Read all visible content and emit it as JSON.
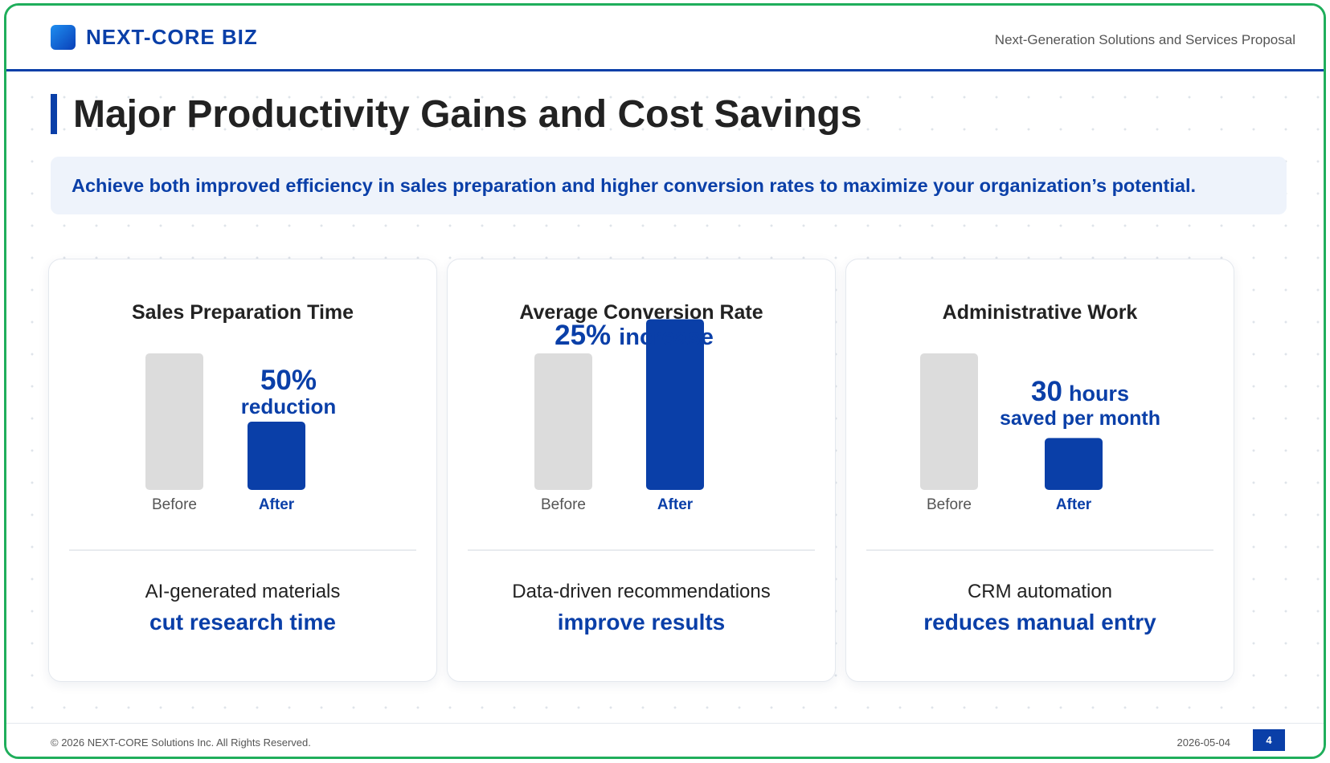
{
  "header": {
    "logo_text": "NEXT-CORE BIZ",
    "right_text": "Next-Generation Solutions and Services Proposal"
  },
  "title": "Major Productivity Gains and Cost Savings",
  "subtitle": "Achieve both improved efficiency in sales preparation and higher conversion rates to maximize your organization’s potential.",
  "colors": {
    "accent": "#0a3fa8",
    "before_bar": "#dcdcdc",
    "after_bar": "#0a3fa8",
    "frame": "#1fae5b"
  },
  "cards": [
    {
      "title": "Sales Preparation Time",
      "annotation": {
        "value": "50%",
        "unit": "",
        "line2": "reduction"
      },
      "description": "AI-generated materials",
      "highlight": "cut research time"
    },
    {
      "title": "Average Conversion Rate",
      "annotation": {
        "value": "25%",
        "unit": "increase",
        "line2": ""
      },
      "description": "Data-driven recommendations",
      "highlight": "improve results"
    },
    {
      "title": "Administrative Work",
      "annotation": {
        "value": "30",
        "unit": "hours",
        "line2": "saved per month"
      },
      "description": "CRM automation",
      "highlight": "reduces manual entry"
    }
  ],
  "chart_data": [
    {
      "type": "bar",
      "title": "Sales Preparation Time",
      "categories": [
        "Before",
        "After"
      ],
      "values": [
        100,
        50
      ],
      "ylim": [
        0,
        100
      ]
    },
    {
      "type": "bar",
      "title": "Average Conversion Rate",
      "categories": [
        "Before",
        "After"
      ],
      "values": [
        100,
        125
      ],
      "ylim": [
        0,
        125
      ]
    },
    {
      "type": "bar",
      "title": "Administrative Work",
      "categories": [
        "Before",
        "After"
      ],
      "values": [
        100,
        38
      ],
      "ylim": [
        0,
        100
      ]
    }
  ],
  "footer": {
    "copyright": "© 2026 NEXT-CORE Solutions Inc. All Rights Reserved.",
    "date": "2026-05-04",
    "page_number": "4"
  }
}
